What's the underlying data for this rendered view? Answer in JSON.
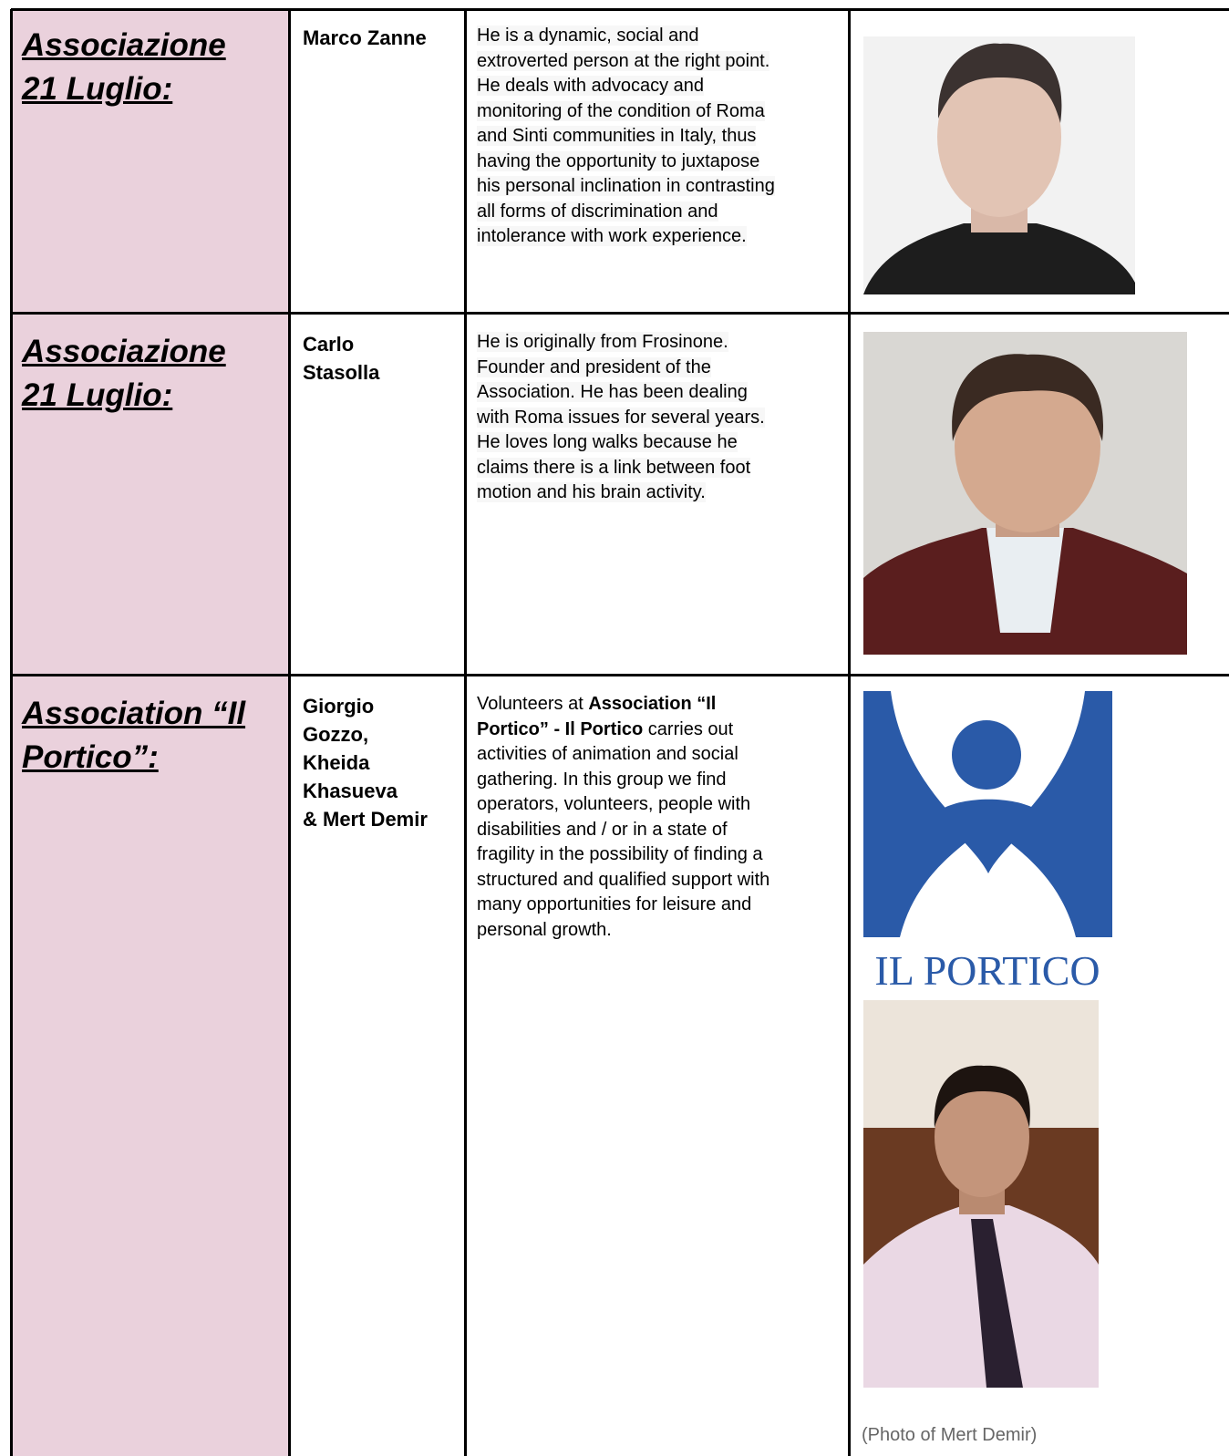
{
  "table": {
    "rows": [
      {
        "org": [
          "Associazione",
          "21 Luglio:"
        ],
        "name": [
          "Marco Zanne"
        ],
        "highlight": true,
        "description": [
          "He is a dynamic, social and",
          "extroverted person at the right point.",
          "He deals with advocacy and",
          "monitoring of the condition of Roma",
          "and Sinti communities in Italy, thus",
          "having the opportunity to juxtapose",
          "his personal inclination in contrasting",
          "all forms of discrimination and",
          "intolerance with work experience."
        ]
      },
      {
        "org": [
          "Associazione",
          "21 Luglio:"
        ],
        "name": [
          "Carlo",
          "Stasolla"
        ],
        "highlight": true,
        "description": [
          "He is originally from Frosinone.",
          "Founder and president of the",
          "Association. He has been dealing",
          "with Roma issues for several years.",
          "He loves long walks because he",
          "claims there is a link between foot",
          "motion and his brain activity."
        ]
      },
      {
        "org": [
          "Association “Il",
          "Portico”:"
        ],
        "name": [
          "Giorgio",
          "Gozzo,",
          "Kheida",
          "Khasueva",
          "& Mert Demir"
        ],
        "highlight": false,
        "description": [
          [
            {
              "text": "Volunteers at "
            },
            {
              "text": "Association “Il",
              "bold": true
            }
          ],
          [
            {
              "text": "Portico” - Il Portico",
              "bold": true
            },
            {
              "text": " carries out"
            }
          ],
          "activities of animation and social",
          "gathering. In this group we find",
          "operators, volunteers, people with",
          "disabilities and / or in a state of",
          "fragility in the possibility of finding a",
          "structured and qualified support with",
          "many opportunities for leisure and",
          "personal growth."
        ],
        "logo": "IL PORTICO",
        "caption": "(Photo of Mert Demir)"
      }
    ]
  }
}
